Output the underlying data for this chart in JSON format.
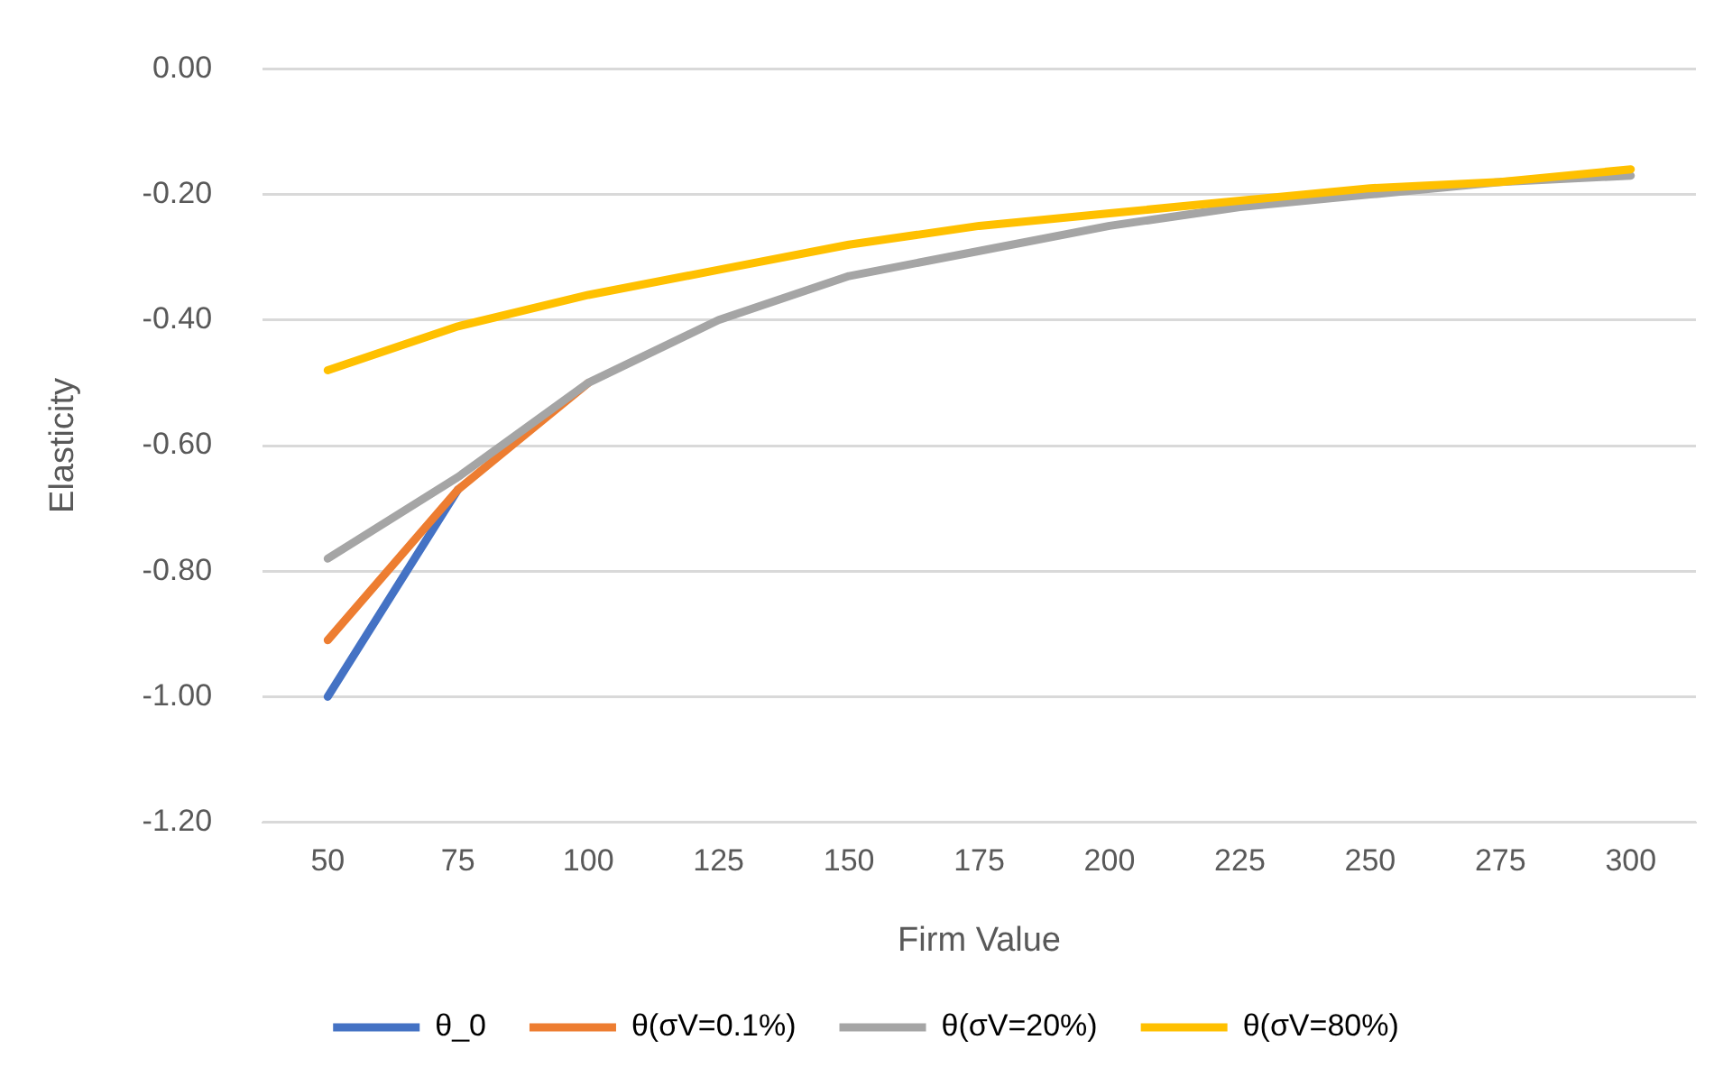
{
  "chart_data": {
    "type": "line",
    "xlabel": "Firm Value",
    "ylabel": "Elasticity",
    "categories": [
      "50",
      "75",
      "100",
      "125",
      "150",
      "175",
      "200",
      "225",
      "250",
      "275",
      "300"
    ],
    "series": [
      {
        "name": "θ_0",
        "color": "#4472c4",
        "values": [
          -1.0,
          -0.67,
          null,
          null,
          null,
          null,
          null,
          null,
          null,
          null,
          null
        ]
      },
      {
        "name": "θ(σV=0.1%)",
        "color": "#ed7d31",
        "values": [
          -0.91,
          -0.67,
          -0.5,
          null,
          null,
          null,
          null,
          null,
          null,
          null,
          null
        ]
      },
      {
        "name": "θ(σV=20%)",
        "color": "#a5a5a5",
        "values": [
          -0.78,
          -0.65,
          -0.5,
          -0.4,
          -0.33,
          -0.29,
          -0.25,
          -0.22,
          -0.2,
          -0.18,
          -0.17
        ]
      },
      {
        "name": "θ(σV=80%)",
        "color": "#ffc000",
        "values": [
          -0.48,
          -0.41,
          -0.36,
          -0.32,
          -0.28,
          -0.25,
          -0.23,
          -0.21,
          -0.19,
          -0.18,
          -0.16
        ]
      }
    ],
    "ylim": [
      -1.2,
      0
    ],
    "yticks": [
      {
        "value": 0,
        "label": "0.00"
      },
      {
        "value": -0.2,
        "label": "-0.20"
      },
      {
        "value": -0.4,
        "label": "-0.40"
      },
      {
        "value": -0.6,
        "label": "-0.60"
      },
      {
        "value": -0.8,
        "label": "-0.80"
      },
      {
        "value": -1.0,
        "label": "-1.00"
      },
      {
        "value": -1.2,
        "label": "-1.20"
      }
    ],
    "grid": "y",
    "legend": "bottom",
    "marker": "none",
    "line_style": "solid"
  }
}
